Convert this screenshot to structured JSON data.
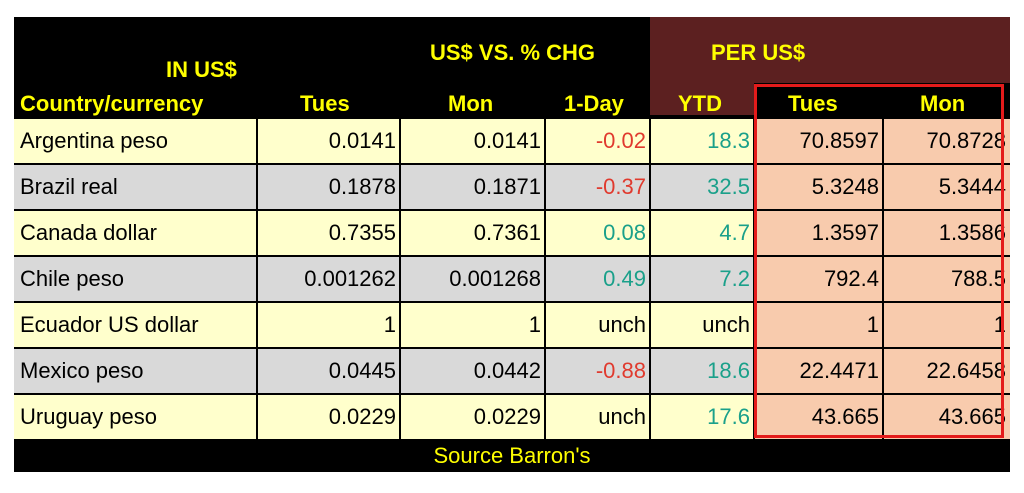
{
  "header": {
    "in_us": "IN US$",
    "vs_chg": "US$ VS. % CHG",
    "per_us": "PER US$"
  },
  "columns": [
    "Country/currency",
    "Tues",
    "Mon",
    "1-Day",
    "YTD",
    "Tues",
    "Mon"
  ],
  "rows": [
    {
      "name": "Argentina peso",
      "tues": "0.0141",
      "mon": "0.0141",
      "day": "-0.02",
      "ytd": "18.3",
      "ptues": "70.8597",
      "pmon": "70.8728"
    },
    {
      "name": "Brazil real",
      "tues": "0.1878",
      "mon": "0.1871",
      "day": "-0.37",
      "ytd": "32.5",
      "ptues": "5.3248",
      "pmon": "5.3444"
    },
    {
      "name": "Canada dollar",
      "tues": "0.7355",
      "mon": "0.7361",
      "day": "0.08",
      "ytd": "4.7",
      "ptues": "1.3597",
      "pmon": "1.3586"
    },
    {
      "name": "Chile peso",
      "tues": "0.001262",
      "mon": "0.001268",
      "day": "0.49",
      "ytd": "7.2",
      "ptues": "792.4",
      "pmon": "788.5"
    },
    {
      "name": "Ecuador US dollar",
      "tues": "1",
      "mon": "1",
      "day": "unch",
      "ytd": "unch",
      "ptues": "1",
      "pmon": "1"
    },
    {
      "name": "Mexico peso",
      "tues": "0.0445",
      "mon": "0.0442",
      "day": "-0.88",
      "ytd": "18.6",
      "ptues": "22.4471",
      "pmon": "22.6458"
    },
    {
      "name": "Uruguay peso",
      "tues": "0.0229",
      "mon": "0.0229",
      "day": "unch",
      "ytd": "17.6",
      "ptues": "43.665",
      "pmon": "43.665"
    }
  ],
  "source": "Source Barron's",
  "colors": {
    "header_bg": "#000000",
    "header_text": "#ffff00",
    "per_us_bg": "#5c2020",
    "row_yellow": "#ffffcc",
    "row_gray": "#d9d9d9",
    "per_col_bg": "#f8cbad",
    "negative": "#e03a2e",
    "positive": "#1aa08a",
    "highlight_box": "#e41b1b"
  }
}
